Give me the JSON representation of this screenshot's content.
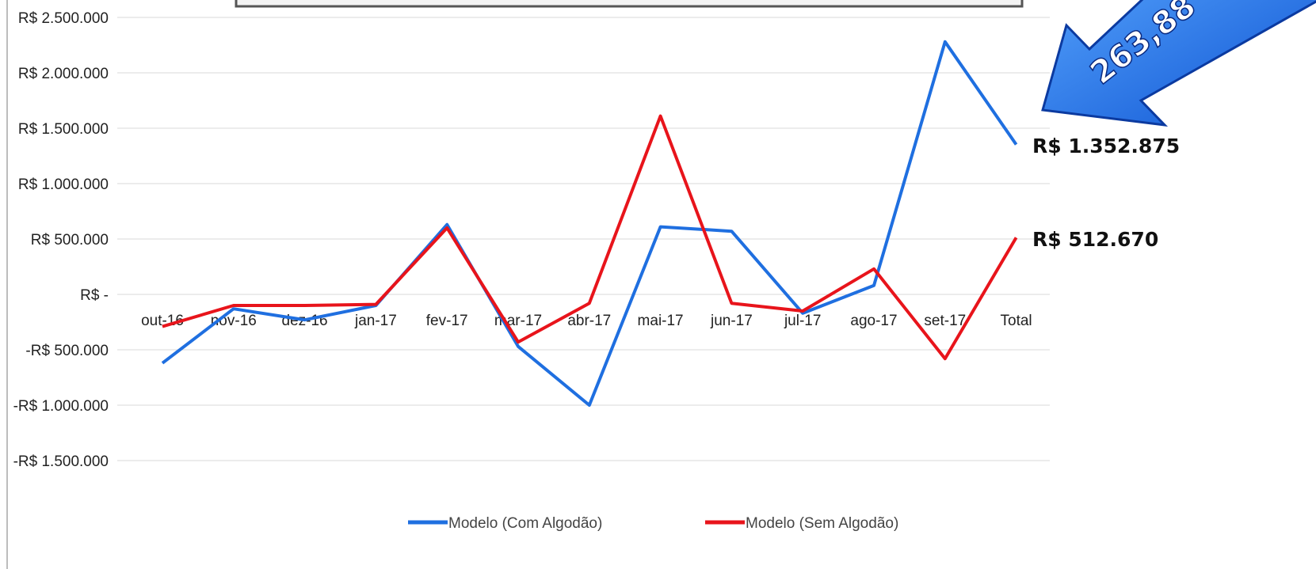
{
  "chart_data": {
    "type": "line",
    "categories": [
      "out-16",
      "nov-16",
      "dez-16",
      "jan-17",
      "fev-17",
      "mar-17",
      "abr-17",
      "mai-17",
      "jun-17",
      "jul-17",
      "ago-17",
      "set-17",
      "Total"
    ],
    "series": [
      {
        "name": "Modelo (Com Algodão)",
        "color": "#1f6fe0",
        "values": [
          -620000,
          -130000,
          -230000,
          -100000,
          630000,
          -470000,
          -1000000,
          610000,
          570000,
          -170000,
          80000,
          2280000,
          1352875
        ]
      },
      {
        "name": "Modelo (Sem Algodão)",
        "color": "#e8141b",
        "values": [
          -290000,
          -100000,
          -100000,
          -90000,
          600000,
          -430000,
          -80000,
          1610000,
          -80000,
          -150000,
          230000,
          -580000,
          512670
        ]
      }
    ],
    "yticks": [
      {
        "value": 2500000,
        "label": "R$ 2.500.000"
      },
      {
        "value": 2000000,
        "label": "R$ 2.000.000"
      },
      {
        "value": 1500000,
        "label": "R$ 1.500.000"
      },
      {
        "value": 1000000,
        "label": "R$ 1.000.000"
      },
      {
        "value": 500000,
        "label": "R$ 500.000"
      },
      {
        "value": 0,
        "label": "R$ -"
      },
      {
        "value": -500000,
        "label": "-R$ 500.000"
      },
      {
        "value": -1000000,
        "label": "-R$ 1.000.000"
      },
      {
        "value": -1500000,
        "label": "-R$ 1.500.000"
      }
    ],
    "ylim": [
      -1500000,
      2500000
    ],
    "grid": true,
    "legend_position": "bottom",
    "end_labels": [
      "R$ 1.352.875",
      "R$ 512.670"
    ],
    "callout": {
      "text": "263,88",
      "color": "#1f6fe0"
    }
  }
}
